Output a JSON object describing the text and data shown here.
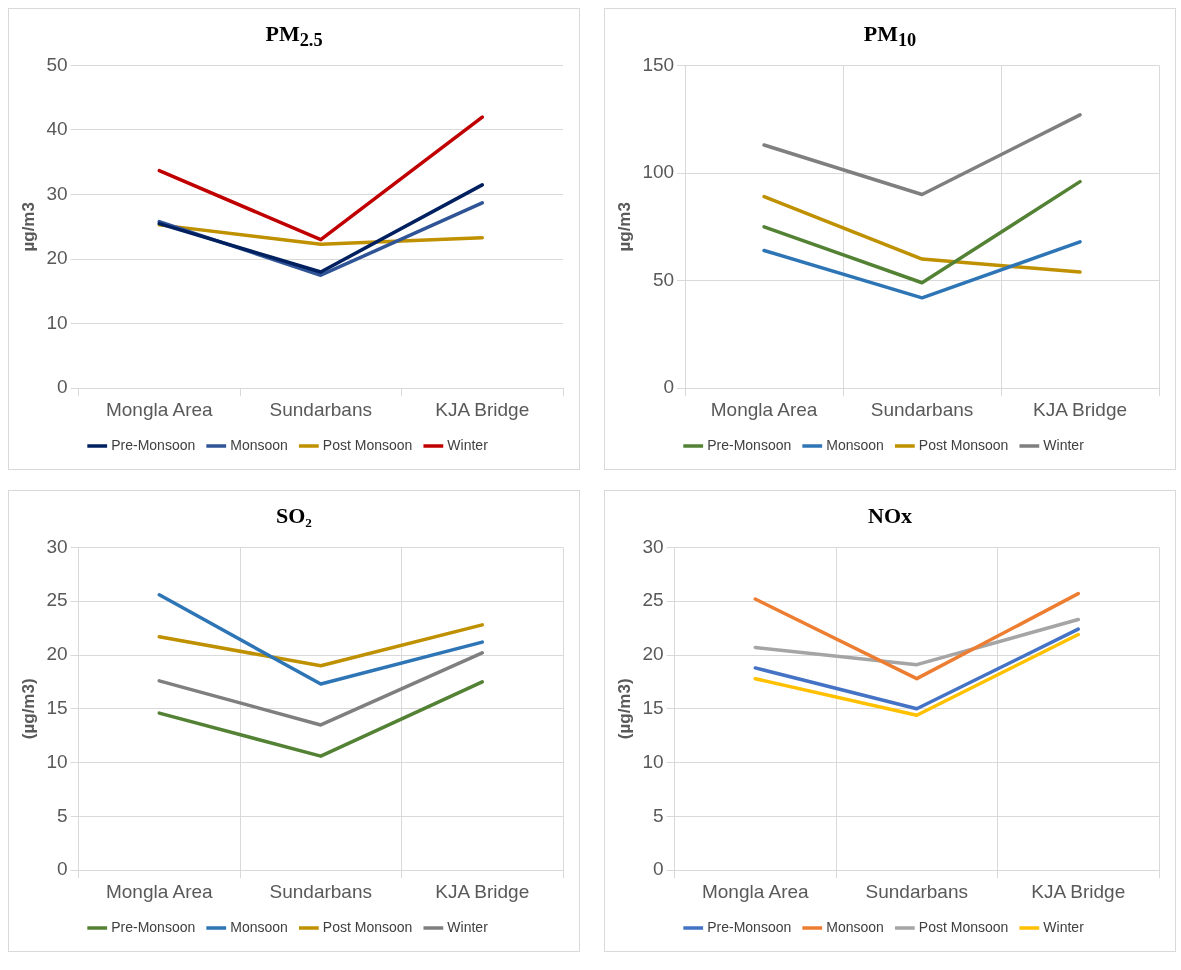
{
  "chart_data": [
    {
      "type": "line",
      "title": "PM$_{2.5}$",
      "ylabel": "µg/m3",
      "categories": [
        "Mongla Area",
        "Sundarbans",
        "KJA Bridge"
      ],
      "ylim": [
        0,
        50
      ],
      "yticks": [
        0,
        10,
        20,
        30,
        40,
        50
      ],
      "grid": "y",
      "legend": "bottom",
      "marker": "none",
      "series": [
        {
          "name": "Pre-Monsoon",
          "color": "#002060",
          "values": [
            25.5,
            18,
            31.5
          ]
        },
        {
          "name": "Monsoon",
          "color": "#2f5597",
          "values": [
            25.8,
            17.5,
            28.7
          ]
        },
        {
          "name": "Post Monsoon",
          "color": "#bf9000",
          "values": [
            25.3,
            22.3,
            23.3
          ]
        },
        {
          "name": "Winter",
          "color": "#c00000",
          "values": [
            33.7,
            23,
            42
          ]
        }
      ]
    },
    {
      "type": "line",
      "title": "PM$_{10}$",
      "ylabel": "µg/m3",
      "categories": [
        "Mongla Area",
        "Sundarbans",
        "KJA Bridge"
      ],
      "ylim": [
        0,
        150
      ],
      "yticks": [
        0,
        50,
        100,
        150
      ],
      "grid": true,
      "legend": "bottom",
      "marker": "none",
      "series": [
        {
          "name": "Pre-Monsoon",
          "color": "#548235",
          "values": [
            75,
            49,
            96
          ]
        },
        {
          "name": "Monsoon",
          "color": "#2e75b6",
          "values": [
            64,
            42,
            68
          ]
        },
        {
          "name": "Post Monsoon",
          "color": "#bf9000",
          "values": [
            89,
            60,
            54
          ]
        },
        {
          "name": "Winter",
          "color": "#7f7f7f",
          "values": [
            113,
            90,
            127
          ]
        }
      ]
    },
    {
      "type": "line",
      "title": "SO₂",
      "ylabel": "(µg/m3)",
      "categories": [
        "Mongla Area",
        "Sundarbans",
        "KJA Bridge"
      ],
      "ylim": [
        0,
        30
      ],
      "yticks": [
        0,
        5,
        10,
        15,
        20,
        25,
        30
      ],
      "grid": true,
      "legend": "bottom",
      "marker": "none",
      "series": [
        {
          "name": "Pre-Monsoon",
          "color": "#548235",
          "values": [
            14.6,
            10.6,
            17.5
          ]
        },
        {
          "name": "Monsoon",
          "color": "#2e75b6",
          "values": [
            25.6,
            17.3,
            21.2
          ]
        },
        {
          "name": "Post Monsoon",
          "color": "#bf9000",
          "values": [
            21.7,
            19,
            22.8
          ]
        },
        {
          "name": "Winter",
          "color": "#7f7f7f",
          "values": [
            17.6,
            13.5,
            20.2
          ]
        }
      ]
    },
    {
      "type": "line",
      "title": "NOx",
      "ylabel": "(µg/m3)",
      "categories": [
        "Mongla Area",
        "Sundarbans",
        "KJA Bridge"
      ],
      "ylim": [
        0,
        30
      ],
      "yticks": [
        0,
        5,
        10,
        15,
        20,
        25,
        30
      ],
      "grid": true,
      "legend": "bottom",
      "marker": "none",
      "series": [
        {
          "name": "Pre-Monsoon",
          "color": "#4472c4",
          "values": [
            18.8,
            15,
            22.4
          ]
        },
        {
          "name": "Monsoon",
          "color": "#ed7d31",
          "values": [
            25.2,
            17.8,
            25.7
          ]
        },
        {
          "name": "Post Monsoon",
          "color": "#a5a5a5",
          "values": [
            20.7,
            19.1,
            23.3
          ]
        },
        {
          "name": "Winter",
          "color": "#ffc000",
          "values": [
            17.8,
            14.4,
            21.9
          ]
        }
      ]
    }
  ]
}
